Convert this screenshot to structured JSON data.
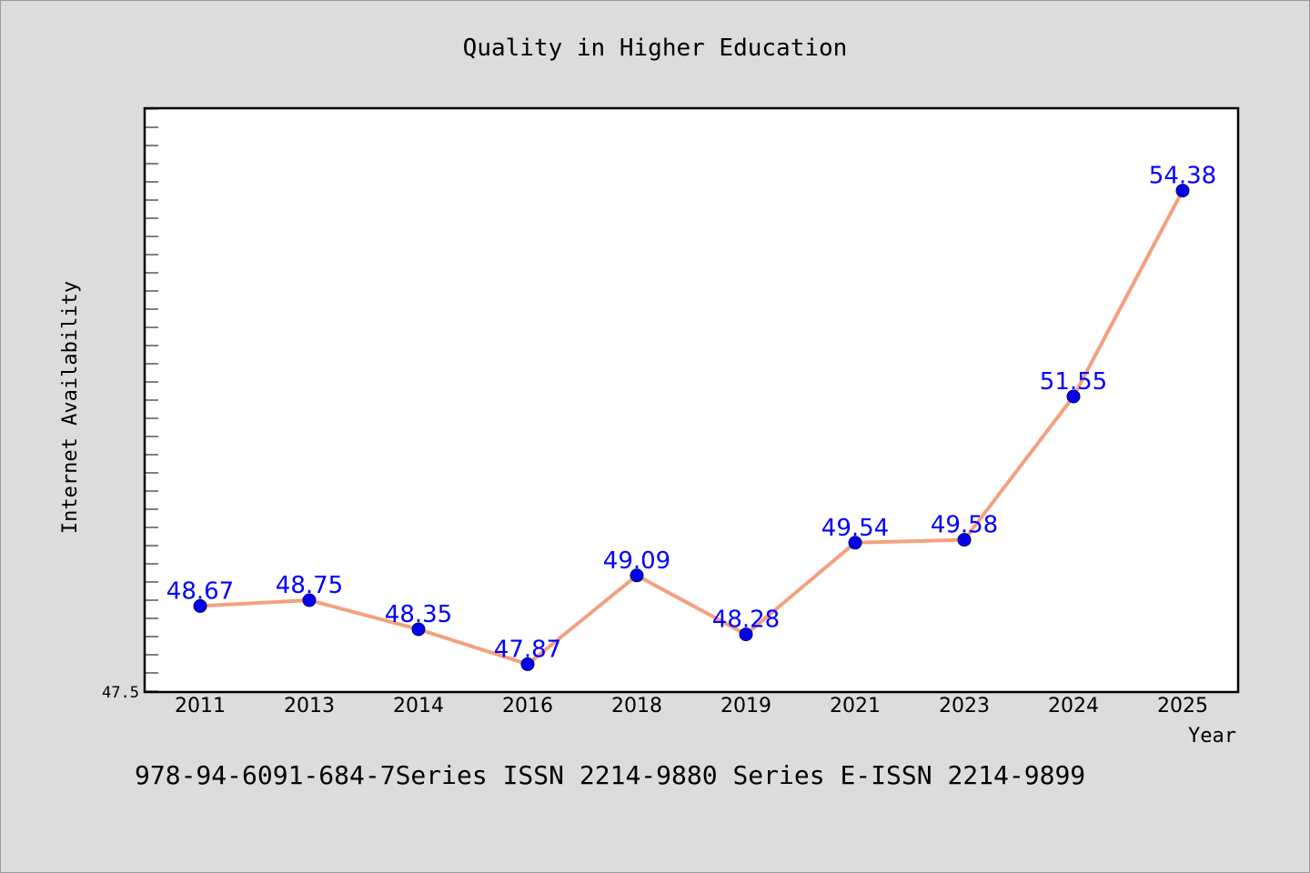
{
  "chart_data": {
    "type": "line",
    "title": "Quality in Higher Education",
    "xlabel": "Year",
    "ylabel": "Internet Availability",
    "footer": "978-94-6091-684-7Series ISSN 2214-9880 Series E-ISSN 2214-9899",
    "categories": [
      "2011",
      "2013",
      "2014",
      "2016",
      "2018",
      "2019",
      "2021",
      "2023",
      "2024",
      "2025"
    ],
    "series": [
      {
        "values": [
          48.67,
          48.75,
          48.35,
          47.87,
          49.09,
          48.28,
          49.54,
          49.58,
          51.55,
          54.38
        ]
      }
    ],
    "y_tick_labels": [
      "47.5"
    ],
    "ylim": [
      47.5,
      55.5
    ],
    "grid": false,
    "legend": "none",
    "colors": {
      "line": "#f4a07f",
      "marker": "#0000ee",
      "data_label": "#0000ff",
      "background": "#dcdcdc",
      "plot_area": "#ffffff"
    }
  }
}
